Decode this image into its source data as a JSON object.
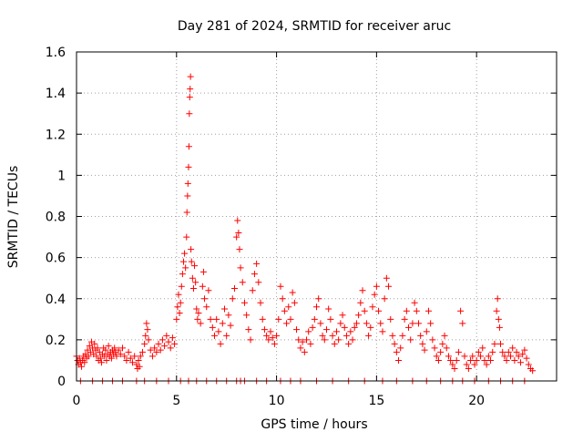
{
  "chart_data": {
    "type": "scatter",
    "title": "Day 281 of 2024, SRMTID for receiver aruc",
    "xlabel": "GPS time / hours",
    "ylabel": "SRMTID / TECUs",
    "xlim": [
      0,
      24
    ],
    "ylim": [
      0,
      1.6
    ],
    "xticks": [
      0,
      5,
      10,
      15,
      20
    ],
    "xtick_labels": [
      "0",
      "5",
      "10",
      "15",
      "20"
    ],
    "yticks": [
      0,
      0.2,
      0.4,
      0.6,
      0.8,
      1.0,
      1.2,
      1.4,
      1.6
    ],
    "ytick_labels": [
      "0",
      "0.2",
      "0.4",
      "0.6",
      "0.8",
      "1",
      "1.2",
      "1.4",
      "1.6"
    ],
    "grid": true,
    "marker": "+",
    "series_color": "#ff0000",
    "series": [
      {
        "name": "SRMTID",
        "points": [
          [
            0.0,
            0.12
          ],
          [
            0.05,
            0.1
          ],
          [
            0.1,
            0.08
          ],
          [
            0.15,
            0.11
          ],
          [
            0.2,
            0.09
          ],
          [
            0.25,
            0.07
          ],
          [
            0.3,
            0.1
          ],
          [
            0.35,
            0.12
          ],
          [
            0.4,
            0.09
          ],
          [
            0.45,
            0.13
          ],
          [
            0.5,
            0.11
          ],
          [
            0.55,
            0.15
          ],
          [
            0.6,
            0.12
          ],
          [
            0.65,
            0.17
          ],
          [
            0.7,
            0.14
          ],
          [
            0.75,
            0.19
          ],
          [
            0.8,
            0.16
          ],
          [
            0.85,
            0.13
          ],
          [
            0.9,
            0.18
          ],
          [
            0.95,
            0.15
          ],
          [
            1.0,
            0.12
          ],
          [
            1.05,
            0.16
          ],
          [
            1.1,
            0.1
          ],
          [
            1.15,
            0.14
          ],
          [
            1.2,
            0.11
          ],
          [
            1.25,
            0.09
          ],
          [
            1.3,
            0.13
          ],
          [
            1.35,
            0.16
          ],
          [
            1.4,
            0.12
          ],
          [
            1.45,
            0.15
          ],
          [
            1.5,
            0.1
          ],
          [
            1.55,
            0.13
          ],
          [
            1.6,
            0.17
          ],
          [
            1.65,
            0.12
          ],
          [
            1.7,
            0.14
          ],
          [
            1.75,
            0.11
          ],
          [
            1.8,
            0.15
          ],
          [
            1.85,
            0.13
          ],
          [
            1.9,
            0.16
          ],
          [
            1.95,
            0.14
          ],
          [
            2.0,
            0.12
          ],
          [
            2.1,
            0.15
          ],
          [
            2.2,
            0.13
          ],
          [
            2.3,
            0.16
          ],
          [
            2.4,
            0.12
          ],
          [
            2.5,
            0.1
          ],
          [
            2.6,
            0.14
          ],
          [
            2.7,
            0.11
          ],
          [
            2.8,
            0.09
          ],
          [
            2.9,
            0.12
          ],
          [
            3.0,
            0.08
          ],
          [
            3.05,
            0.06
          ],
          [
            3.1,
            0.1
          ],
          [
            3.15,
            0.07
          ],
          [
            3.2,
            0.12
          ],
          [
            3.3,
            0.14
          ],
          [
            3.4,
            0.18
          ],
          [
            3.45,
            0.22
          ],
          [
            3.5,
            0.28
          ],
          [
            3.55,
            0.25
          ],
          [
            3.6,
            0.2
          ],
          [
            3.7,
            0.15
          ],
          [
            3.8,
            0.12
          ],
          [
            3.9,
            0.16
          ],
          [
            4.0,
            0.14
          ],
          [
            4.1,
            0.18
          ],
          [
            4.2,
            0.15
          ],
          [
            4.3,
            0.2
          ],
          [
            4.4,
            0.17
          ],
          [
            4.5,
            0.22
          ],
          [
            4.6,
            0.19
          ],
          [
            4.7,
            0.16
          ],
          [
            4.8,
            0.21
          ],
          [
            4.9,
            0.18
          ],
          [
            5.0,
            0.3
          ],
          [
            5.05,
            0.36
          ],
          [
            5.1,
            0.42
          ],
          [
            5.15,
            0.33
          ],
          [
            5.2,
            0.38
          ],
          [
            5.25,
            0.46
          ],
          [
            5.3,
            0.52
          ],
          [
            5.35,
            0.58
          ],
          [
            5.4,
            0.62
          ],
          [
            5.45,
            0.55
          ],
          [
            5.5,
            0.7
          ],
          [
            5.52,
            0.82
          ],
          [
            5.55,
            0.9
          ],
          [
            5.57,
            0.96
          ],
          [
            5.6,
            1.04
          ],
          [
            5.62,
            1.14
          ],
          [
            5.64,
            1.3
          ],
          [
            5.66,
            1.38
          ],
          [
            5.68,
            1.42
          ],
          [
            5.7,
            1.48
          ],
          [
            5.72,
            0.64
          ],
          [
            5.75,
            0.58
          ],
          [
            5.8,
            0.5
          ],
          [
            5.85,
            0.45
          ],
          [
            5.9,
            0.56
          ],
          [
            5.95,
            0.48
          ],
          [
            6.0,
            0.35
          ],
          [
            6.05,
            0.3
          ],
          [
            6.1,
            0.33
          ],
          [
            6.2,
            0.28
          ],
          [
            6.3,
            0.46
          ],
          [
            6.35,
            0.53
          ],
          [
            6.4,
            0.4
          ],
          [
            6.5,
            0.36
          ],
          [
            6.6,
            0.44
          ],
          [
            6.7,
            0.3
          ],
          [
            6.8,
            0.26
          ],
          [
            6.9,
            0.22
          ],
          [
            7.0,
            0.3
          ],
          [
            7.1,
            0.24
          ],
          [
            7.2,
            0.18
          ],
          [
            7.3,
            0.28
          ],
          [
            7.4,
            0.35
          ],
          [
            7.5,
            0.22
          ],
          [
            7.6,
            0.32
          ],
          [
            7.7,
            0.27
          ],
          [
            7.8,
            0.4
          ],
          [
            7.9,
            0.45
          ],
          [
            8.0,
            0.7
          ],
          [
            8.05,
            0.78
          ],
          [
            8.1,
            0.72
          ],
          [
            8.15,
            0.64
          ],
          [
            8.2,
            0.55
          ],
          [
            8.3,
            0.48
          ],
          [
            8.4,
            0.38
          ],
          [
            8.5,
            0.32
          ],
          [
            8.6,
            0.25
          ],
          [
            8.7,
            0.2
          ],
          [
            8.8,
            0.44
          ],
          [
            8.9,
            0.52
          ],
          [
            9.0,
            0.57
          ],
          [
            9.1,
            0.48
          ],
          [
            9.2,
            0.38
          ],
          [
            9.3,
            0.3
          ],
          [
            9.4,
            0.25
          ],
          [
            9.5,
            0.22
          ],
          [
            9.6,
            0.2
          ],
          [
            9.7,
            0.24
          ],
          [
            9.8,
            0.21
          ],
          [
            9.9,
            0.18
          ],
          [
            10.0,
            0.22
          ],
          [
            10.1,
            0.3
          ],
          [
            10.2,
            0.46
          ],
          [
            10.3,
            0.4
          ],
          [
            10.4,
            0.34
          ],
          [
            10.5,
            0.28
          ],
          [
            10.6,
            0.36
          ],
          [
            10.7,
            0.3
          ],
          [
            10.8,
            0.43
          ],
          [
            10.9,
            0.38
          ],
          [
            11.0,
            0.25
          ],
          [
            11.1,
            0.2
          ],
          [
            11.2,
            0.16
          ],
          [
            11.3,
            0.19
          ],
          [
            11.4,
            0.14
          ],
          [
            11.5,
            0.2
          ],
          [
            11.6,
            0.24
          ],
          [
            11.7,
            0.18
          ],
          [
            11.8,
            0.26
          ],
          [
            11.9,
            0.3
          ],
          [
            12.0,
            0.36
          ],
          [
            12.1,
            0.4
          ],
          [
            12.2,
            0.28
          ],
          [
            12.3,
            0.22
          ],
          [
            12.4,
            0.2
          ],
          [
            12.5,
            0.25
          ],
          [
            12.6,
            0.35
          ],
          [
            12.7,
            0.3
          ],
          [
            12.8,
            0.22
          ],
          [
            12.9,
            0.18
          ],
          [
            13.0,
            0.24
          ],
          [
            13.1,
            0.2
          ],
          [
            13.2,
            0.28
          ],
          [
            13.3,
            0.32
          ],
          [
            13.4,
            0.26
          ],
          [
            13.5,
            0.22
          ],
          [
            13.6,
            0.18
          ],
          [
            13.7,
            0.24
          ],
          [
            13.8,
            0.2
          ],
          [
            13.9,
            0.26
          ],
          [
            14.0,
            0.28
          ],
          [
            14.1,
            0.32
          ],
          [
            14.2,
            0.38
          ],
          [
            14.3,
            0.44
          ],
          [
            14.4,
            0.34
          ],
          [
            14.5,
            0.28
          ],
          [
            14.6,
            0.22
          ],
          [
            14.7,
            0.26
          ],
          [
            14.8,
            0.36
          ],
          [
            14.9,
            0.42
          ],
          [
            15.0,
            0.46
          ],
          [
            15.1,
            0.34
          ],
          [
            15.2,
            0.28
          ],
          [
            15.3,
            0.24
          ],
          [
            15.4,
            0.4
          ],
          [
            15.5,
            0.5
          ],
          [
            15.6,
            0.46
          ],
          [
            15.7,
            0.3
          ],
          [
            15.8,
            0.22
          ],
          [
            15.9,
            0.18
          ],
          [
            16.0,
            0.14
          ],
          [
            16.1,
            0.1
          ],
          [
            16.2,
            0.16
          ],
          [
            16.3,
            0.22
          ],
          [
            16.4,
            0.3
          ],
          [
            16.5,
            0.34
          ],
          [
            16.6,
            0.26
          ],
          [
            16.7,
            0.2
          ],
          [
            16.8,
            0.28
          ],
          [
            16.9,
            0.38
          ],
          [
            17.0,
            0.34
          ],
          [
            17.1,
            0.28
          ],
          [
            17.2,
            0.22
          ],
          [
            17.3,
            0.18
          ],
          [
            17.4,
            0.15
          ],
          [
            17.5,
            0.24
          ],
          [
            17.6,
            0.34
          ],
          [
            17.7,
            0.28
          ],
          [
            17.8,
            0.2
          ],
          [
            17.9,
            0.16
          ],
          [
            18.0,
            0.12
          ],
          [
            18.1,
            0.1
          ],
          [
            18.2,
            0.14
          ],
          [
            18.3,
            0.18
          ],
          [
            18.4,
            0.22
          ],
          [
            18.5,
            0.16
          ],
          [
            18.6,
            0.12
          ],
          [
            18.7,
            0.1
          ],
          [
            18.8,
            0.08
          ],
          [
            18.9,
            0.06
          ],
          [
            19.0,
            0.1
          ],
          [
            19.1,
            0.14
          ],
          [
            19.2,
            0.34
          ],
          [
            19.3,
            0.28
          ],
          [
            19.4,
            0.12
          ],
          [
            19.5,
            0.08
          ],
          [
            19.6,
            0.06
          ],
          [
            19.7,
            0.1
          ],
          [
            19.8,
            0.12
          ],
          [
            19.9,
            0.08
          ],
          [
            20.0,
            0.1
          ],
          [
            20.1,
            0.14
          ],
          [
            20.2,
            0.12
          ],
          [
            20.3,
            0.16
          ],
          [
            20.4,
            0.1
          ],
          [
            20.5,
            0.08
          ],
          [
            20.6,
            0.12
          ],
          [
            20.7,
            0.1
          ],
          [
            20.8,
            0.14
          ],
          [
            20.9,
            0.18
          ],
          [
            21.0,
            0.34
          ],
          [
            21.05,
            0.4
          ],
          [
            21.1,
            0.3
          ],
          [
            21.15,
            0.26
          ],
          [
            21.2,
            0.18
          ],
          [
            21.3,
            0.14
          ],
          [
            21.4,
            0.12
          ],
          [
            21.5,
            0.1
          ],
          [
            21.6,
            0.14
          ],
          [
            21.7,
            0.12
          ],
          [
            21.8,
            0.16
          ],
          [
            21.9,
            0.1
          ],
          [
            22.0,
            0.14
          ],
          [
            22.1,
            0.12
          ],
          [
            22.2,
            0.09
          ],
          [
            22.3,
            0.13
          ],
          [
            22.4,
            0.15
          ],
          [
            22.5,
            0.11
          ],
          [
            22.6,
            0.08
          ],
          [
            22.7,
            0.06
          ],
          [
            22.8,
            0.05
          ],
          [
            0.2,
            0
          ],
          [
            0.8,
            0
          ],
          [
            1.3,
            0
          ],
          [
            1.8,
            0
          ],
          [
            2.3,
            0
          ],
          [
            3.0,
            0
          ],
          [
            3.4,
            0
          ],
          [
            4.0,
            0
          ],
          [
            4.6,
            0
          ],
          [
            5.2,
            0
          ],
          [
            5.6,
            0
          ],
          [
            6.0,
            0
          ],
          [
            6.5,
            0
          ],
          [
            7.0,
            0
          ],
          [
            7.5,
            0
          ],
          [
            8.0,
            0
          ],
          [
            8.2,
            0
          ],
          [
            8.4,
            0
          ],
          [
            9.0,
            0
          ],
          [
            9.5,
            0
          ],
          [
            10.2,
            0
          ],
          [
            10.7,
            0
          ],
          [
            11.2,
            0
          ],
          [
            12.0,
            0
          ],
          [
            12.8,
            0
          ],
          [
            13.6,
            0
          ],
          [
            14.4,
            0
          ],
          [
            15.3,
            0
          ],
          [
            16.0,
            0
          ],
          [
            16.8,
            0
          ],
          [
            17.5,
            0
          ],
          [
            18.2,
            0
          ],
          [
            18.8,
            0
          ],
          [
            19.3,
            0
          ],
          [
            19.9,
            0
          ],
          [
            20.6,
            0
          ],
          [
            21.2,
            0
          ],
          [
            21.8,
            0
          ],
          [
            22.4,
            0
          ]
        ]
      }
    ]
  }
}
